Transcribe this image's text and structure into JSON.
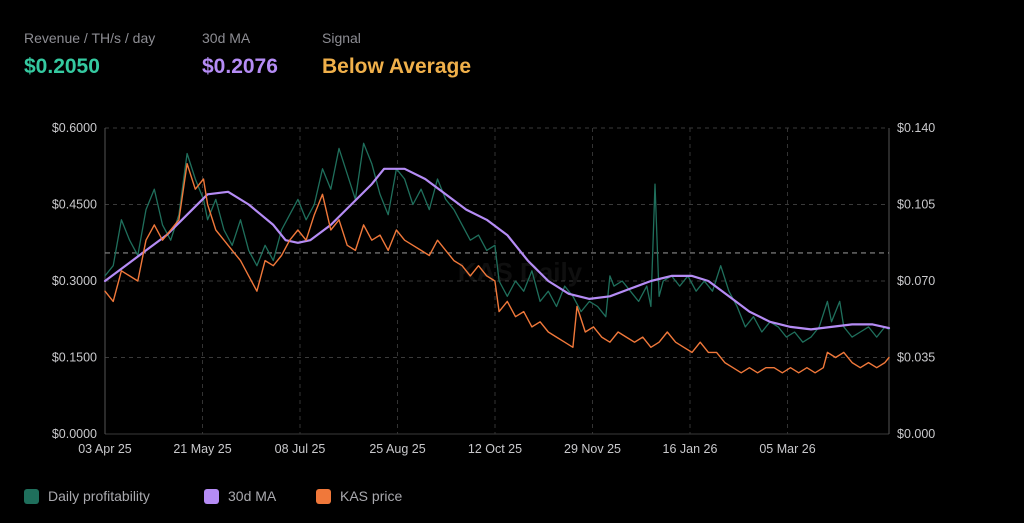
{
  "stats": [
    {
      "label": "Revenue / TH/s / day",
      "value": "$0.2050",
      "color": "#35c9a0"
    },
    {
      "label": "30d MA",
      "value": "$0.2076",
      "color": "#b58cf5"
    },
    {
      "label": "Signal",
      "value": "Below Average",
      "color": "#f0b04a"
    }
  ],
  "watermark": "KAS Daily",
  "legend": [
    {
      "label": "Daily profitability",
      "color": "#1f6f5c",
      "icon": "square-swatch"
    },
    {
      "label": "30d MA",
      "color": "#b58cf5",
      "icon": "square-swatch"
    },
    {
      "label": "KAS price",
      "color": "#f0783a",
      "icon": "square-swatch"
    }
  ],
  "chart_data": {
    "type": "line",
    "x_tick_labels": [
      "03 Apr 25",
      "21 May 25",
      "08 Jul 25",
      "25 Aug 25",
      "12 Oct 25",
      "29 Nov 25",
      "16 Jan 26",
      "05 Mar 26"
    ],
    "y_left": {
      "ticks": [
        "$0.0000",
        "$0.1500",
        "$0.3000",
        "$0.4500",
        "$0.6000"
      ],
      "ylim": [
        0,
        0.6
      ]
    },
    "y_right": {
      "ticks": [
        "$0.000",
        "$0.035",
        "$0.070",
        "$0.105",
        "$0.140"
      ],
      "ylim": [
        0,
        0.14
      ]
    },
    "reference_line": {
      "axis": "left",
      "value": 0.355,
      "style": "dashed"
    },
    "grid": "vertical dashed at x ticks, horizontal dashed at y ticks",
    "x_range_days": [
      0,
      382
    ],
    "series": [
      {
        "name": "Daily profitability",
        "axis": "left",
        "color": "#1f6f5c",
        "points": [
          [
            0,
            0.31
          ],
          [
            4,
            0.33
          ],
          [
            8,
            0.42
          ],
          [
            12,
            0.38
          ],
          [
            16,
            0.35
          ],
          [
            20,
            0.44
          ],
          [
            24,
            0.48
          ],
          [
            28,
            0.41
          ],
          [
            32,
            0.38
          ],
          [
            36,
            0.43
          ],
          [
            40,
            0.55
          ],
          [
            44,
            0.5
          ],
          [
            48,
            0.46
          ],
          [
            50,
            0.42
          ],
          [
            54,
            0.46
          ],
          [
            58,
            0.4
          ],
          [
            62,
            0.37
          ],
          [
            66,
            0.42
          ],
          [
            70,
            0.36
          ],
          [
            74,
            0.33
          ],
          [
            78,
            0.37
          ],
          [
            82,
            0.34
          ],
          [
            86,
            0.4
          ],
          [
            90,
            0.43
          ],
          [
            94,
            0.46
          ],
          [
            98,
            0.42
          ],
          [
            102,
            0.45
          ],
          [
            106,
            0.52
          ],
          [
            110,
            0.48
          ],
          [
            114,
            0.56
          ],
          [
            118,
            0.51
          ],
          [
            122,
            0.46
          ],
          [
            126,
            0.57
          ],
          [
            130,
            0.53
          ],
          [
            134,
            0.47
          ],
          [
            138,
            0.43
          ],
          [
            142,
            0.52
          ],
          [
            146,
            0.5
          ],
          [
            150,
            0.45
          ],
          [
            154,
            0.48
          ],
          [
            158,
            0.44
          ],
          [
            162,
            0.5
          ],
          [
            166,
            0.46
          ],
          [
            170,
            0.44
          ],
          [
            174,
            0.41
          ],
          [
            178,
            0.38
          ],
          [
            182,
            0.39
          ],
          [
            186,
            0.36
          ],
          [
            190,
            0.37
          ],
          [
            192,
            0.3
          ],
          [
            196,
            0.27
          ],
          [
            200,
            0.3
          ],
          [
            204,
            0.28
          ],
          [
            208,
            0.32
          ],
          [
            212,
            0.26
          ],
          [
            216,
            0.28
          ],
          [
            220,
            0.25
          ],
          [
            224,
            0.29
          ],
          [
            228,
            0.27
          ],
          [
            232,
            0.24
          ],
          [
            236,
            0.26
          ],
          [
            240,
            0.25
          ],
          [
            244,
            0.23
          ],
          [
            246,
            0.31
          ],
          [
            248,
            0.29
          ],
          [
            252,
            0.3
          ],
          [
            256,
            0.28
          ],
          [
            260,
            0.26
          ],
          [
            264,
            0.29
          ],
          [
            266,
            0.25
          ],
          [
            268,
            0.49
          ],
          [
            270,
            0.27
          ],
          [
            272,
            0.3
          ],
          [
            276,
            0.31
          ],
          [
            280,
            0.29
          ],
          [
            284,
            0.31
          ],
          [
            288,
            0.28
          ],
          [
            292,
            0.3
          ],
          [
            296,
            0.28
          ],
          [
            300,
            0.33
          ],
          [
            304,
            0.28
          ],
          [
            308,
            0.25
          ],
          [
            312,
            0.21
          ],
          [
            316,
            0.23
          ],
          [
            320,
            0.2
          ],
          [
            324,
            0.22
          ],
          [
            328,
            0.21
          ],
          [
            332,
            0.19
          ],
          [
            336,
            0.2
          ],
          [
            340,
            0.18
          ],
          [
            344,
            0.19
          ],
          [
            348,
            0.21
          ],
          [
            352,
            0.26
          ],
          [
            354,
            0.22
          ],
          [
            358,
            0.26
          ],
          [
            360,
            0.21
          ],
          [
            364,
            0.19
          ],
          [
            368,
            0.2
          ],
          [
            372,
            0.21
          ],
          [
            376,
            0.19
          ],
          [
            380,
            0.21
          ],
          [
            382,
            0.205
          ]
        ]
      },
      {
        "name": "30d MA",
        "axis": "left",
        "color": "#b58cf5",
        "points": [
          [
            0,
            0.3
          ],
          [
            10,
            0.33
          ],
          [
            20,
            0.36
          ],
          [
            30,
            0.39
          ],
          [
            40,
            0.43
          ],
          [
            50,
            0.47
          ],
          [
            60,
            0.475
          ],
          [
            70,
            0.45
          ],
          [
            76,
            0.43
          ],
          [
            82,
            0.41
          ],
          [
            88,
            0.38
          ],
          [
            94,
            0.375
          ],
          [
            100,
            0.38
          ],
          [
            110,
            0.41
          ],
          [
            120,
            0.45
          ],
          [
            130,
            0.49
          ],
          [
            136,
            0.52
          ],
          [
            146,
            0.52
          ],
          [
            156,
            0.5
          ],
          [
            166,
            0.47
          ],
          [
            176,
            0.44
          ],
          [
            186,
            0.42
          ],
          [
            196,
            0.39
          ],
          [
            206,
            0.34
          ],
          [
            216,
            0.3
          ],
          [
            226,
            0.275
          ],
          [
            236,
            0.265
          ],
          [
            246,
            0.27
          ],
          [
            256,
            0.285
          ],
          [
            266,
            0.3
          ],
          [
            276,
            0.31
          ],
          [
            286,
            0.31
          ],
          [
            294,
            0.3
          ],
          [
            304,
            0.27
          ],
          [
            314,
            0.24
          ],
          [
            324,
            0.22
          ],
          [
            334,
            0.21
          ],
          [
            344,
            0.205
          ],
          [
            354,
            0.21
          ],
          [
            364,
            0.215
          ],
          [
            374,
            0.215
          ],
          [
            382,
            0.2076
          ]
        ]
      },
      {
        "name": "KAS price",
        "axis": "left",
        "color": "#f0783a",
        "points": [
          [
            0,
            0.28
          ],
          [
            4,
            0.26
          ],
          [
            8,
            0.32
          ],
          [
            12,
            0.31
          ],
          [
            16,
            0.3
          ],
          [
            20,
            0.38
          ],
          [
            24,
            0.41
          ],
          [
            28,
            0.38
          ],
          [
            32,
            0.4
          ],
          [
            36,
            0.42
          ],
          [
            40,
            0.53
          ],
          [
            44,
            0.48
          ],
          [
            48,
            0.5
          ],
          [
            50,
            0.45
          ],
          [
            54,
            0.4
          ],
          [
            58,
            0.38
          ],
          [
            62,
            0.36
          ],
          [
            66,
            0.34
          ],
          [
            70,
            0.31
          ],
          [
            74,
            0.28
          ],
          [
            78,
            0.34
          ],
          [
            82,
            0.33
          ],
          [
            86,
            0.35
          ],
          [
            90,
            0.38
          ],
          [
            94,
            0.4
          ],
          [
            98,
            0.38
          ],
          [
            102,
            0.43
          ],
          [
            106,
            0.47
          ],
          [
            110,
            0.4
          ],
          [
            114,
            0.42
          ],
          [
            118,
            0.37
          ],
          [
            122,
            0.36
          ],
          [
            126,
            0.41
          ],
          [
            130,
            0.38
          ],
          [
            134,
            0.39
          ],
          [
            138,
            0.36
          ],
          [
            142,
            0.4
          ],
          [
            146,
            0.38
          ],
          [
            150,
            0.37
          ],
          [
            154,
            0.36
          ],
          [
            158,
            0.35
          ],
          [
            162,
            0.38
          ],
          [
            166,
            0.36
          ],
          [
            170,
            0.34
          ],
          [
            174,
            0.33
          ],
          [
            178,
            0.31
          ],
          [
            182,
            0.33
          ],
          [
            186,
            0.31
          ],
          [
            190,
            0.3
          ],
          [
            192,
            0.24
          ],
          [
            196,
            0.26
          ],
          [
            200,
            0.23
          ],
          [
            204,
            0.24
          ],
          [
            208,
            0.21
          ],
          [
            212,
            0.22
          ],
          [
            216,
            0.2
          ],
          [
            220,
            0.19
          ],
          [
            224,
            0.18
          ],
          [
            228,
            0.17
          ],
          [
            230,
            0.25
          ],
          [
            234,
            0.2
          ],
          [
            238,
            0.21
          ],
          [
            242,
            0.19
          ],
          [
            246,
            0.18
          ],
          [
            250,
            0.2
          ],
          [
            254,
            0.19
          ],
          [
            258,
            0.18
          ],
          [
            262,
            0.19
          ],
          [
            266,
            0.17
          ],
          [
            270,
            0.18
          ],
          [
            274,
            0.2
          ],
          [
            278,
            0.18
          ],
          [
            282,
            0.17
          ],
          [
            286,
            0.16
          ],
          [
            290,
            0.18
          ],
          [
            294,
            0.16
          ],
          [
            298,
            0.16
          ],
          [
            302,
            0.14
          ],
          [
            306,
            0.13
          ],
          [
            310,
            0.12
          ],
          [
            314,
            0.13
          ],
          [
            318,
            0.12
          ],
          [
            322,
            0.13
          ],
          [
            326,
            0.13
          ],
          [
            330,
            0.12
          ],
          [
            334,
            0.13
          ],
          [
            338,
            0.12
          ],
          [
            342,
            0.13
          ],
          [
            346,
            0.12
          ],
          [
            350,
            0.13
          ],
          [
            352,
            0.16
          ],
          [
            356,
            0.15
          ],
          [
            360,
            0.16
          ],
          [
            364,
            0.14
          ],
          [
            368,
            0.13
          ],
          [
            372,
            0.14
          ],
          [
            376,
            0.13
          ],
          [
            380,
            0.14
          ],
          [
            382,
            0.15
          ]
        ]
      }
    ]
  }
}
